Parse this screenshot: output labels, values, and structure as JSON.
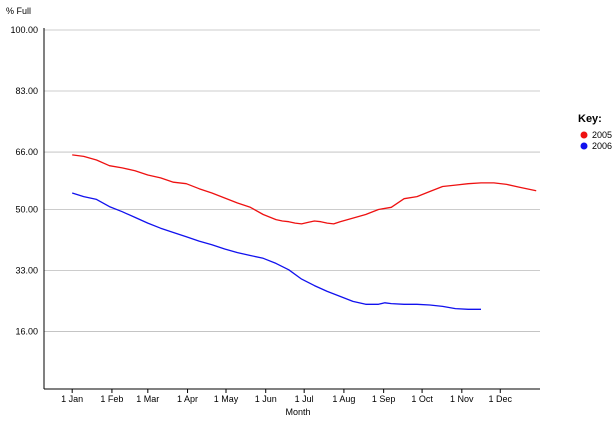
{
  "chart_data": {
    "type": "line",
    "ylabel": "% Full",
    "xlabel": "Month",
    "ylim": [
      0,
      100
    ],
    "y_ticks": [
      "100.00",
      "83.00",
      "66.00",
      "50.00",
      "33.00",
      "16.00"
    ],
    "y_tick_values": [
      100,
      83,
      66,
      50,
      33,
      16
    ],
    "x_tick_labels": [
      "1 Jan",
      "1 Feb",
      "1 Mar",
      "1 Apr",
      "1 May",
      "1 Jun",
      "1 Jul",
      "1 Aug",
      "1 Sep",
      "1 Oct",
      "1 Nov",
      "1 Dec"
    ],
    "x_tick_values": [
      1,
      32,
      60,
      91,
      121,
      152,
      182,
      213,
      244,
      274,
      305,
      335
    ],
    "xlim": [
      -21,
      366
    ],
    "grid": true,
    "legend": {
      "title": "Key:",
      "placement": "right"
    },
    "series": [
      {
        "name": "2005",
        "color": "#ee1111",
        "points": [
          [
            1,
            65.2
          ],
          [
            10,
            64.8
          ],
          [
            20,
            63.8
          ],
          [
            30,
            62.2
          ],
          [
            40,
            61.6
          ],
          [
            50,
            60.8
          ],
          [
            60,
            59.6
          ],
          [
            70,
            58.8
          ],
          [
            80,
            57.6
          ],
          [
            90,
            57.2
          ],
          [
            100,
            55.8
          ],
          [
            110,
            54.6
          ],
          [
            120,
            53.2
          ],
          [
            130,
            51.8
          ],
          [
            140,
            50.6
          ],
          [
            150,
            48.6
          ],
          [
            160,
            47.2
          ],
          [
            165,
            46.8
          ],
          [
            170,
            46.6
          ],
          [
            175,
            46.2
          ],
          [
            180,
            46.0
          ],
          [
            185,
            46.4
          ],
          [
            190,
            46.8
          ],
          [
            195,
            46.6
          ],
          [
            200,
            46.2
          ],
          [
            205,
            46.0
          ],
          [
            210,
            46.6
          ],
          [
            220,
            47.6
          ],
          [
            230,
            48.6
          ],
          [
            240,
            50.0
          ],
          [
            250,
            50.6
          ],
          [
            260,
            53.0
          ],
          [
            270,
            53.6
          ],
          [
            280,
            55.0
          ],
          [
            290,
            56.4
          ],
          [
            300,
            56.8
          ],
          [
            310,
            57.2
          ],
          [
            320,
            57.4
          ],
          [
            330,
            57.4
          ],
          [
            340,
            57.0
          ],
          [
            350,
            56.2
          ],
          [
            363,
            55.2
          ]
        ]
      },
      {
        "name": "2006",
        "color": "#1111ee",
        "points": [
          [
            1,
            54.6
          ],
          [
            10,
            53.6
          ],
          [
            20,
            52.8
          ],
          [
            30,
            50.8
          ],
          [
            40,
            49.4
          ],
          [
            50,
            47.8
          ],
          [
            60,
            46.2
          ],
          [
            70,
            44.8
          ],
          [
            80,
            43.6
          ],
          [
            90,
            42.4
          ],
          [
            100,
            41.2
          ],
          [
            110,
            40.2
          ],
          [
            120,
            39.0
          ],
          [
            130,
            38.0
          ],
          [
            140,
            37.2
          ],
          [
            150,
            36.4
          ],
          [
            160,
            35.0
          ],
          [
            170,
            33.2
          ],
          [
            180,
            30.6
          ],
          [
            190,
            28.8
          ],
          [
            200,
            27.2
          ],
          [
            210,
            25.8
          ],
          [
            220,
            24.4
          ],
          [
            230,
            23.6
          ],
          [
            240,
            23.6
          ],
          [
            245,
            24.0
          ],
          [
            250,
            23.8
          ],
          [
            260,
            23.6
          ],
          [
            270,
            23.6
          ],
          [
            280,
            23.4
          ],
          [
            290,
            23.0
          ],
          [
            300,
            22.4
          ],
          [
            310,
            22.2
          ],
          [
            320,
            22.2
          ]
        ]
      }
    ]
  }
}
